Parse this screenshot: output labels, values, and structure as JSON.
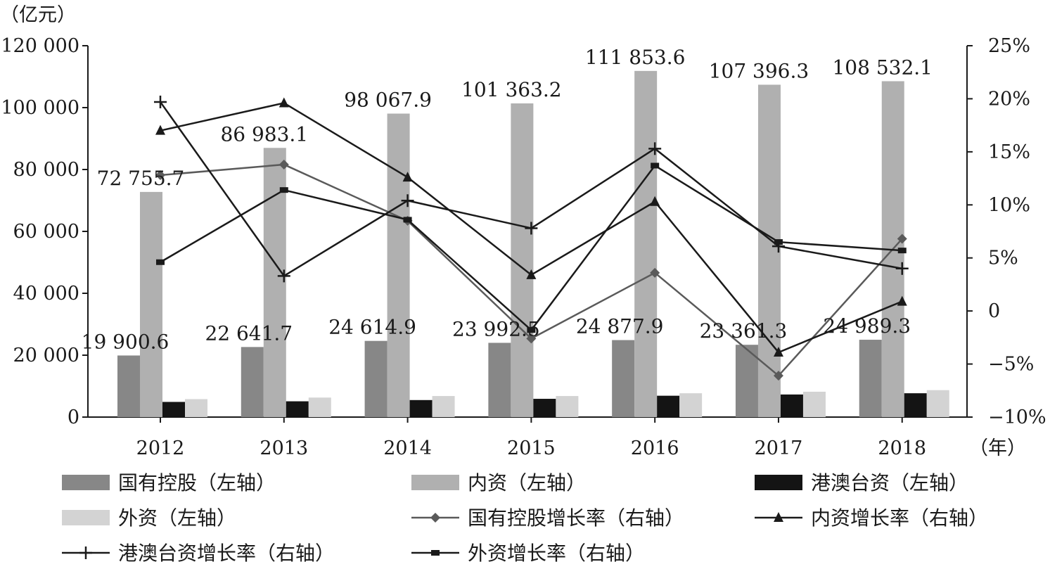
{
  "chart_data": {
    "type": "bar",
    "categories": [
      "2012",
      "2013",
      "2014",
      "2015",
      "2016",
      "2017",
      "2018"
    ],
    "left_axis": {
      "unit": "（亿元）",
      "ylim": [
        0,
        120000
      ],
      "ticks": [
        0,
        20000,
        40000,
        60000,
        80000,
        100000,
        120000
      ],
      "tick_labels": [
        "0",
        "20 000",
        "40 000",
        "60 000",
        "80 000",
        "100 000",
        "120 000"
      ]
    },
    "right_axis": {
      "ylim": [
        -10,
        25
      ],
      "ticks": [
        -10,
        -5,
        0,
        5,
        10,
        15,
        20,
        25
      ],
      "tick_labels": [
        "−10%",
        "−5%",
        "0",
        "5%",
        "10%",
        "15%",
        "20%",
        "25%"
      ]
    },
    "x_unit": "（年）",
    "bar_series": [
      {
        "name": "国有控股（左轴）",
        "color": "#878787",
        "values": [
          19900.6,
          22641.7,
          24614.9,
          23992.5,
          24877.9,
          23361.3,
          24989.3
        ],
        "labels": [
          "19 900.6",
          "22 641.7",
          "24 614.9",
          "23 992.5",
          "24 877.9",
          "23 361.3",
          "24 989.3"
        ]
      },
      {
        "name": "内资（左轴）",
        "color": "#b0b0b0",
        "values": [
          72755.7,
          86983.1,
          98067.9,
          101363.2,
          111853.6,
          107396.3,
          108532.1
        ],
        "labels": [
          "72 755.7",
          "86 983.1",
          "98 067.9",
          "101 363.2",
          "111 853.6",
          "107 396.3",
          "108 532.1"
        ]
      },
      {
        "name": "港澳台资（左轴）",
        "color": "#141414",
        "values": [
          4900,
          5100,
          5500,
          5900,
          6900,
          7300,
          7700
        ],
        "labels": []
      },
      {
        "name": "外资（左轴）",
        "color": "#d3d3d3",
        "values": [
          5800,
          6300,
          6800,
          6800,
          7700,
          8200,
          8700
        ],
        "labels": []
      }
    ],
    "line_series": [
      {
        "name": "国有控股增长率（右轴）",
        "color": "#5a5a5a",
        "marker": "diamond",
        "values": [
          12.8,
          13.8,
          8.5,
          -2.6,
          3.6,
          -6.1,
          6.8
        ]
      },
      {
        "name": "内资增长率（右轴）",
        "color": "#1a1a1a",
        "marker": "triangle",
        "values": [
          17.0,
          19.6,
          12.6,
          3.4,
          10.3,
          -3.9,
          0.9
        ]
      },
      {
        "name": "港澳台资增长率（右轴）",
        "color": "#1a1a1a",
        "marker": "plus",
        "values": [
          19.7,
          3.3,
          10.4,
          7.8,
          15.3,
          6.1,
          4.0
        ]
      },
      {
        "name": "外资增长率（右轴）",
        "color": "#1a1a1a",
        "marker": "dash",
        "values": [
          4.6,
          11.4,
          8.6,
          -1.8,
          13.7,
          6.5,
          5.7
        ]
      }
    ],
    "legend_position": "bottom",
    "grid": false
  }
}
